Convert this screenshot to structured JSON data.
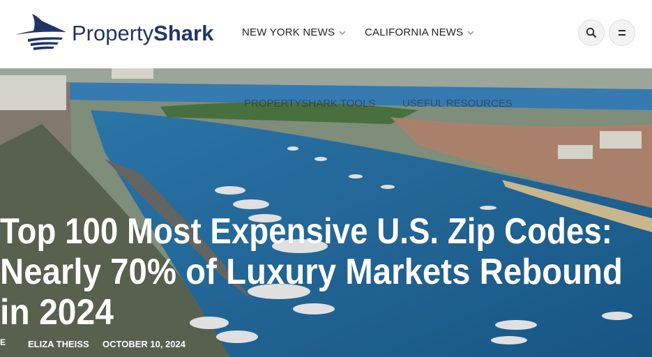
{
  "header": {
    "logo": {
      "part1": "Property",
      "part2": "Shark"
    },
    "nav": [
      {
        "label": "NEW YORK NEWS"
      },
      {
        "label": "CALIFORNIA NEWS"
      }
    ],
    "hidden_nav": [
      {
        "label": "PROPERTYSHARK TOOLS"
      },
      {
        "label": "USEFUL RESOURCES"
      }
    ]
  },
  "article": {
    "title_lines": [
      "Top 100 Most Expensive U.S. Zip Codes:",
      "Nearly 70% of Luxury Markets Rebound",
      "in 2024"
    ],
    "avatar_alt": "E",
    "author": "ELIZA THEISS",
    "date": "OCTOBER 10, 2024"
  }
}
